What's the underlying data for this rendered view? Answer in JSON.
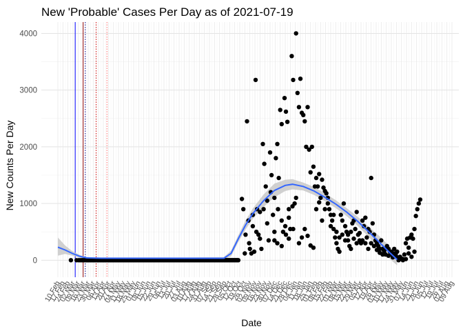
{
  "chart_data": {
    "type": "scatter",
    "title": "New 'Probable' Cases Per Day as of 2021-07-19",
    "xlabel": "Date",
    "ylabel": "New Counts Per Day",
    "ylim": [
      -300,
      4200
    ],
    "yticks": [
      0,
      1000,
      2000,
      3000,
      4000
    ],
    "x_start": "2020-02-10",
    "x_end": "2021-08-09",
    "xtick_labels": [
      "10 Feb",
      "17 Feb",
      "24 Feb",
      "02 Mar",
      "09 Mar",
      "16 Mar",
      "23 Mar",
      "30 Mar",
      "06 Apr",
      "13 Apr",
      "20 Apr",
      "27 Apr",
      "04 May",
      "11 May",
      "18 May",
      "25 May",
      "01 Jun",
      "08 Jun",
      "15 Jun",
      "22 Jun",
      "29 Jun",
      "06 Jul",
      "13 Jul",
      "20 Jul",
      "27 Jul",
      "03 Aug",
      "10 Aug",
      "17 Aug",
      "24 Aug",
      "31 Aug",
      "07 Sep",
      "14 Sep",
      "21 Sep",
      "28 Sep",
      "05 Oct",
      "12 Oct",
      "19 Oct",
      "26 Oct",
      "02 Nov",
      "09 Nov",
      "16 Nov",
      "23 Nov",
      "30 Nov",
      "07 Dec",
      "14 Dec",
      "21 Dec",
      "28 Dec",
      "04 Jan",
      "11 Jan",
      "18 Jan",
      "25 Jan",
      "01 Feb",
      "08 Feb",
      "15 Feb",
      "22 Feb",
      "01 Mar",
      "08 Mar",
      "15 Mar",
      "22 Mar",
      "29 Mar",
      "05 Apr",
      "12 Apr",
      "19 Apr",
      "26 Apr",
      "03 May",
      "10 May",
      "17 May",
      "24 May",
      "31 May",
      "07 Jun",
      "14 Jun",
      "21 Jun",
      "28 Jun",
      "05 Jul",
      "12 Jul",
      "19 Jul",
      "26 Jul",
      "02 Aug",
      "09 Aug"
    ],
    "vertical_lines": [
      {
        "day": 24,
        "color": "#0000ff",
        "style": "solid"
      },
      {
        "day": 35,
        "color": "#8b0000",
        "style": "solid"
      },
      {
        "day": 38,
        "color": "#00008b",
        "style": "dotted"
      },
      {
        "day": 53,
        "color": "#cc0000",
        "style": "dotted"
      },
      {
        "day": 68,
        "color": "#ff6666",
        "style": "dotted"
      }
    ],
    "smooth_color": "#3366ff",
    "band_color": "#c8c8c8",
    "smooth_curve": [
      {
        "day": 0,
        "y": 230,
        "lo": 80,
        "hi": 400
      },
      {
        "day": 10,
        "y": 180,
        "lo": 110,
        "hi": 260
      },
      {
        "day": 20,
        "y": 120,
        "lo": 80,
        "hi": 160
      },
      {
        "day": 30,
        "y": 70,
        "lo": 45,
        "hi": 95
      },
      {
        "day": 40,
        "y": 40,
        "lo": 25,
        "hi": 55
      },
      {
        "day": 60,
        "y": 35,
        "lo": 20,
        "hi": 50
      },
      {
        "day": 120,
        "y": 35,
        "lo": 20,
        "hi": 50
      },
      {
        "day": 180,
        "y": 35,
        "lo": 20,
        "hi": 50
      },
      {
        "day": 230,
        "y": 35,
        "lo": 15,
        "hi": 55
      },
      {
        "day": 240,
        "y": 120,
        "lo": 70,
        "hi": 170
      },
      {
        "day": 250,
        "y": 380,
        "lo": 320,
        "hi": 440
      },
      {
        "day": 260,
        "y": 620,
        "lo": 540,
        "hi": 700
      },
      {
        "day": 270,
        "y": 820,
        "lo": 730,
        "hi": 910
      },
      {
        "day": 285,
        "y": 1050,
        "lo": 940,
        "hi": 1160
      },
      {
        "day": 300,
        "y": 1230,
        "lo": 1110,
        "hi": 1350
      },
      {
        "day": 315,
        "y": 1320,
        "lo": 1220,
        "hi": 1420
      },
      {
        "day": 325,
        "y": 1340,
        "lo": 1250,
        "hi": 1430
      },
      {
        "day": 340,
        "y": 1300,
        "lo": 1230,
        "hi": 1370
      },
      {
        "day": 355,
        "y": 1220,
        "lo": 1150,
        "hi": 1290
      },
      {
        "day": 370,
        "y": 1110,
        "lo": 1040,
        "hi": 1180
      },
      {
        "day": 385,
        "y": 990,
        "lo": 920,
        "hi": 1060
      },
      {
        "day": 400,
        "y": 850,
        "lo": 780,
        "hi": 920
      },
      {
        "day": 415,
        "y": 690,
        "lo": 610,
        "hi": 770
      },
      {
        "day": 430,
        "y": 510,
        "lo": 420,
        "hi": 600
      },
      {
        "day": 445,
        "y": 320,
        "lo": 210,
        "hi": 430
      },
      {
        "day": 460,
        "y": 130,
        "lo": 20,
        "hi": 240
      },
      {
        "day": 470,
        "y": 10,
        "lo": -90,
        "hi": 110
      }
    ],
    "points": [
      [
        18,
        0
      ],
      [
        26,
        0
      ],
      [
        29,
        0
      ],
      [
        31,
        0
      ],
      [
        33,
        0
      ],
      [
        34,
        0
      ],
      [
        255,
        1080
      ],
      [
        257,
        900
      ],
      [
        259,
        120
      ],
      [
        262,
        2450
      ],
      [
        264,
        700
      ],
      [
        266,
        200
      ],
      [
        268,
        120
      ],
      [
        270,
        600
      ],
      [
        272,
        150
      ],
      [
        274,
        3180
      ],
      [
        276,
        900
      ],
      [
        278,
        450
      ],
      [
        280,
        380
      ],
      [
        282,
        200
      ],
      [
        284,
        2050
      ],
      [
        286,
        1700
      ],
      [
        288,
        1300
      ],
      [
        290,
        650
      ],
      [
        292,
        350
      ],
      [
        294,
        1900
      ],
      [
        296,
        1500
      ],
      [
        298,
        800
      ],
      [
        300,
        500
      ],
      [
        302,
        1800
      ],
      [
        304,
        2050
      ],
      [
        306,
        1450
      ],
      [
        308,
        2650
      ],
      [
        310,
        2400
      ],
      [
        312,
        500
      ],
      [
        314,
        2860
      ],
      [
        316,
        2620
      ],
      [
        318,
        2440
      ],
      [
        320,
        900
      ],
      [
        322,
        550
      ],
      [
        324,
        3600
      ],
      [
        326,
        3180
      ],
      [
        328,
        1000
      ],
      [
        330,
        4000
      ],
      [
        332,
        2950
      ],
      [
        334,
        2700
      ],
      [
        336,
        3200
      ],
      [
        338,
        2600
      ],
      [
        340,
        2560
      ],
      [
        342,
        2450
      ],
      [
        344,
        2000
      ],
      [
        346,
        2700
      ],
      [
        348,
        1950
      ],
      [
        350,
        1550
      ],
      [
        352,
        2000
      ],
      [
        354,
        1650
      ],
      [
        356,
        1300
      ],
      [
        358,
        1450
      ],
      [
        360,
        1300
      ],
      [
        362,
        1520
      ],
      [
        364,
        1100
      ],
      [
        366,
        1420
      ],
      [
        368,
        1280
      ],
      [
        370,
        1220
      ],
      [
        372,
        1180
      ],
      [
        374,
        1000
      ],
      [
        376,
        900
      ],
      [
        378,
        800
      ],
      [
        380,
        700
      ],
      [
        382,
        550
      ],
      [
        384,
        400
      ],
      [
        386,
        300
      ],
      [
        388,
        200
      ],
      [
        390,
        150
      ],
      [
        392,
        800
      ],
      [
        394,
        700
      ],
      [
        396,
        1000
      ],
      [
        398,
        600
      ],
      [
        400,
        500
      ],
      [
        402,
        350
      ],
      [
        404,
        250
      ],
      [
        406,
        200
      ],
      [
        408,
        650
      ],
      [
        410,
        700
      ],
      [
        412,
        550
      ],
      [
        414,
        850
      ],
      [
        416,
        450
      ],
      [
        418,
        350
      ],
      [
        420,
        300
      ],
      [
        422,
        700
      ],
      [
        424,
        600
      ],
      [
        426,
        750
      ],
      [
        428,
        400
      ],
      [
        430,
        550
      ],
      [
        432,
        500
      ],
      [
        434,
        1450
      ],
      [
        436,
        650
      ],
      [
        438,
        450
      ],
      [
        440,
        350
      ],
      [
        442,
        300
      ],
      [
        444,
        250
      ],
      [
        446,
        200
      ],
      [
        448,
        350
      ],
      [
        450,
        200
      ],
      [
        452,
        150
      ],
      [
        454,
        100
      ],
      [
        456,
        250
      ],
      [
        458,
        200
      ],
      [
        460,
        150
      ],
      [
        462,
        100
      ],
      [
        464,
        50
      ],
      [
        466,
        200
      ],
      [
        468,
        100
      ],
      [
        470,
        50
      ],
      [
        472,
        0
      ],
      [
        474,
        20
      ],
      [
        476,
        30
      ],
      [
        478,
        20
      ],
      [
        480,
        100
      ],
      [
        482,
        300
      ],
      [
        484,
        380
      ],
      [
        486,
        220
      ],
      [
        488,
        400
      ],
      [
        490,
        450
      ],
      [
        492,
        380
      ],
      [
        494,
        550
      ],
      [
        496,
        780
      ],
      [
        498,
        900
      ],
      [
        500,
        1000
      ],
      [
        502,
        1070
      ],
      [
        300,
        350
      ],
      [
        304,
        300
      ],
      [
        310,
        250
      ],
      [
        316,
        450
      ],
      [
        320,
        380
      ],
      [
        326,
        550
      ],
      [
        330,
        1100
      ],
      [
        334,
        300
      ],
      [
        338,
        400
      ],
      [
        342,
        550
      ],
      [
        346,
        430
      ],
      [
        350,
        260
      ],
      [
        354,
        220
      ],
      [
        358,
        900
      ],
      [
        362,
        1020
      ],
      [
        366,
        700
      ],
      [
        370,
        900
      ],
      [
        374,
        1100
      ],
      [
        378,
        600
      ],
      [
        382,
        800
      ],
      [
        386,
        500
      ],
      [
        390,
        400
      ],
      [
        394,
        450
      ],
      [
        398,
        350
      ],
      [
        402,
        450
      ],
      [
        406,
        500
      ],
      [
        410,
        380
      ],
      [
        414,
        300
      ],
      [
        418,
        480
      ],
      [
        422,
        350
      ],
      [
        426,
        300
      ],
      [
        430,
        200
      ],
      [
        434,
        300
      ],
      [
        438,
        250
      ],
      [
        442,
        180
      ],
      [
        446,
        130
      ],
      [
        450,
        100
      ],
      [
        454,
        200
      ],
      [
        458,
        80
      ],
      [
        462,
        150
      ],
      [
        466,
        120
      ],
      [
        470,
        150
      ],
      [
        474,
        60
      ],
      [
        478,
        0
      ],
      [
        482,
        20
      ],
      [
        486,
        120
      ],
      [
        490,
        60
      ],
      [
        494,
        150
      ],
      [
        260,
        450
      ],
      [
        265,
        300
      ],
      [
        270,
        800
      ],
      [
        275,
        500
      ],
      [
        280,
        850
      ],
      [
        285,
        900
      ],
      [
        290,
        1050
      ],
      [
        295,
        1200
      ],
      [
        300,
        1100
      ],
      [
        305,
        900
      ],
      [
        310,
        700
      ],
      [
        315,
        600
      ],
      [
        320,
        750
      ],
      [
        325,
        950
      ]
    ]
  }
}
